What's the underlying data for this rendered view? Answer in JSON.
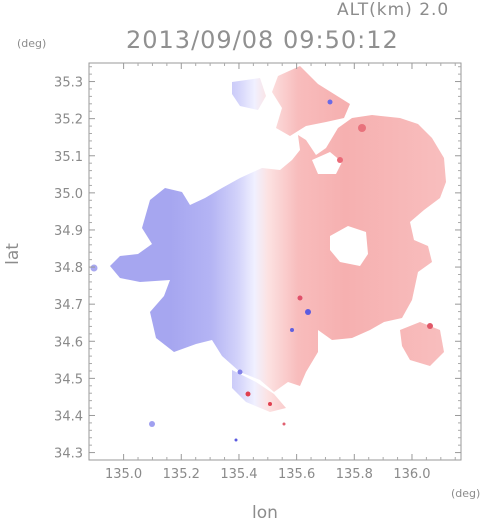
{
  "header": {
    "altitude_label": "ALT(km) 2.0",
    "timestamp": "2013/09/08 09:50:12"
  },
  "axes": {
    "x_label": "lon",
    "y_label": "lat",
    "x_unit": "(deg)",
    "y_unit": "(deg)",
    "x_range": [
      134.88,
      136.17
    ],
    "y_range": [
      34.28,
      35.35
    ],
    "x_ticks": [
      "135.0",
      "135.2",
      "135.4",
      "135.6",
      "135.8",
      "136.0"
    ],
    "y_ticks": [
      "34.3",
      "34.4",
      "34.5",
      "34.6",
      "34.7",
      "34.8",
      "34.9",
      "35.0",
      "35.1",
      "35.2",
      "35.3"
    ]
  },
  "chart_data": {
    "type": "heatmap",
    "field": "radial velocity (blue = toward radar, red = away)",
    "colors": {
      "negative": "#a9a9f2",
      "negative_light": "#d8d8fa",
      "near_zero": "#f4f4ff",
      "positive_light": "#fbd9d9",
      "positive": "#f6a9a9",
      "positive_strong": "#e65a6a",
      "negative_strong": "#5a5ae0"
    }
  }
}
